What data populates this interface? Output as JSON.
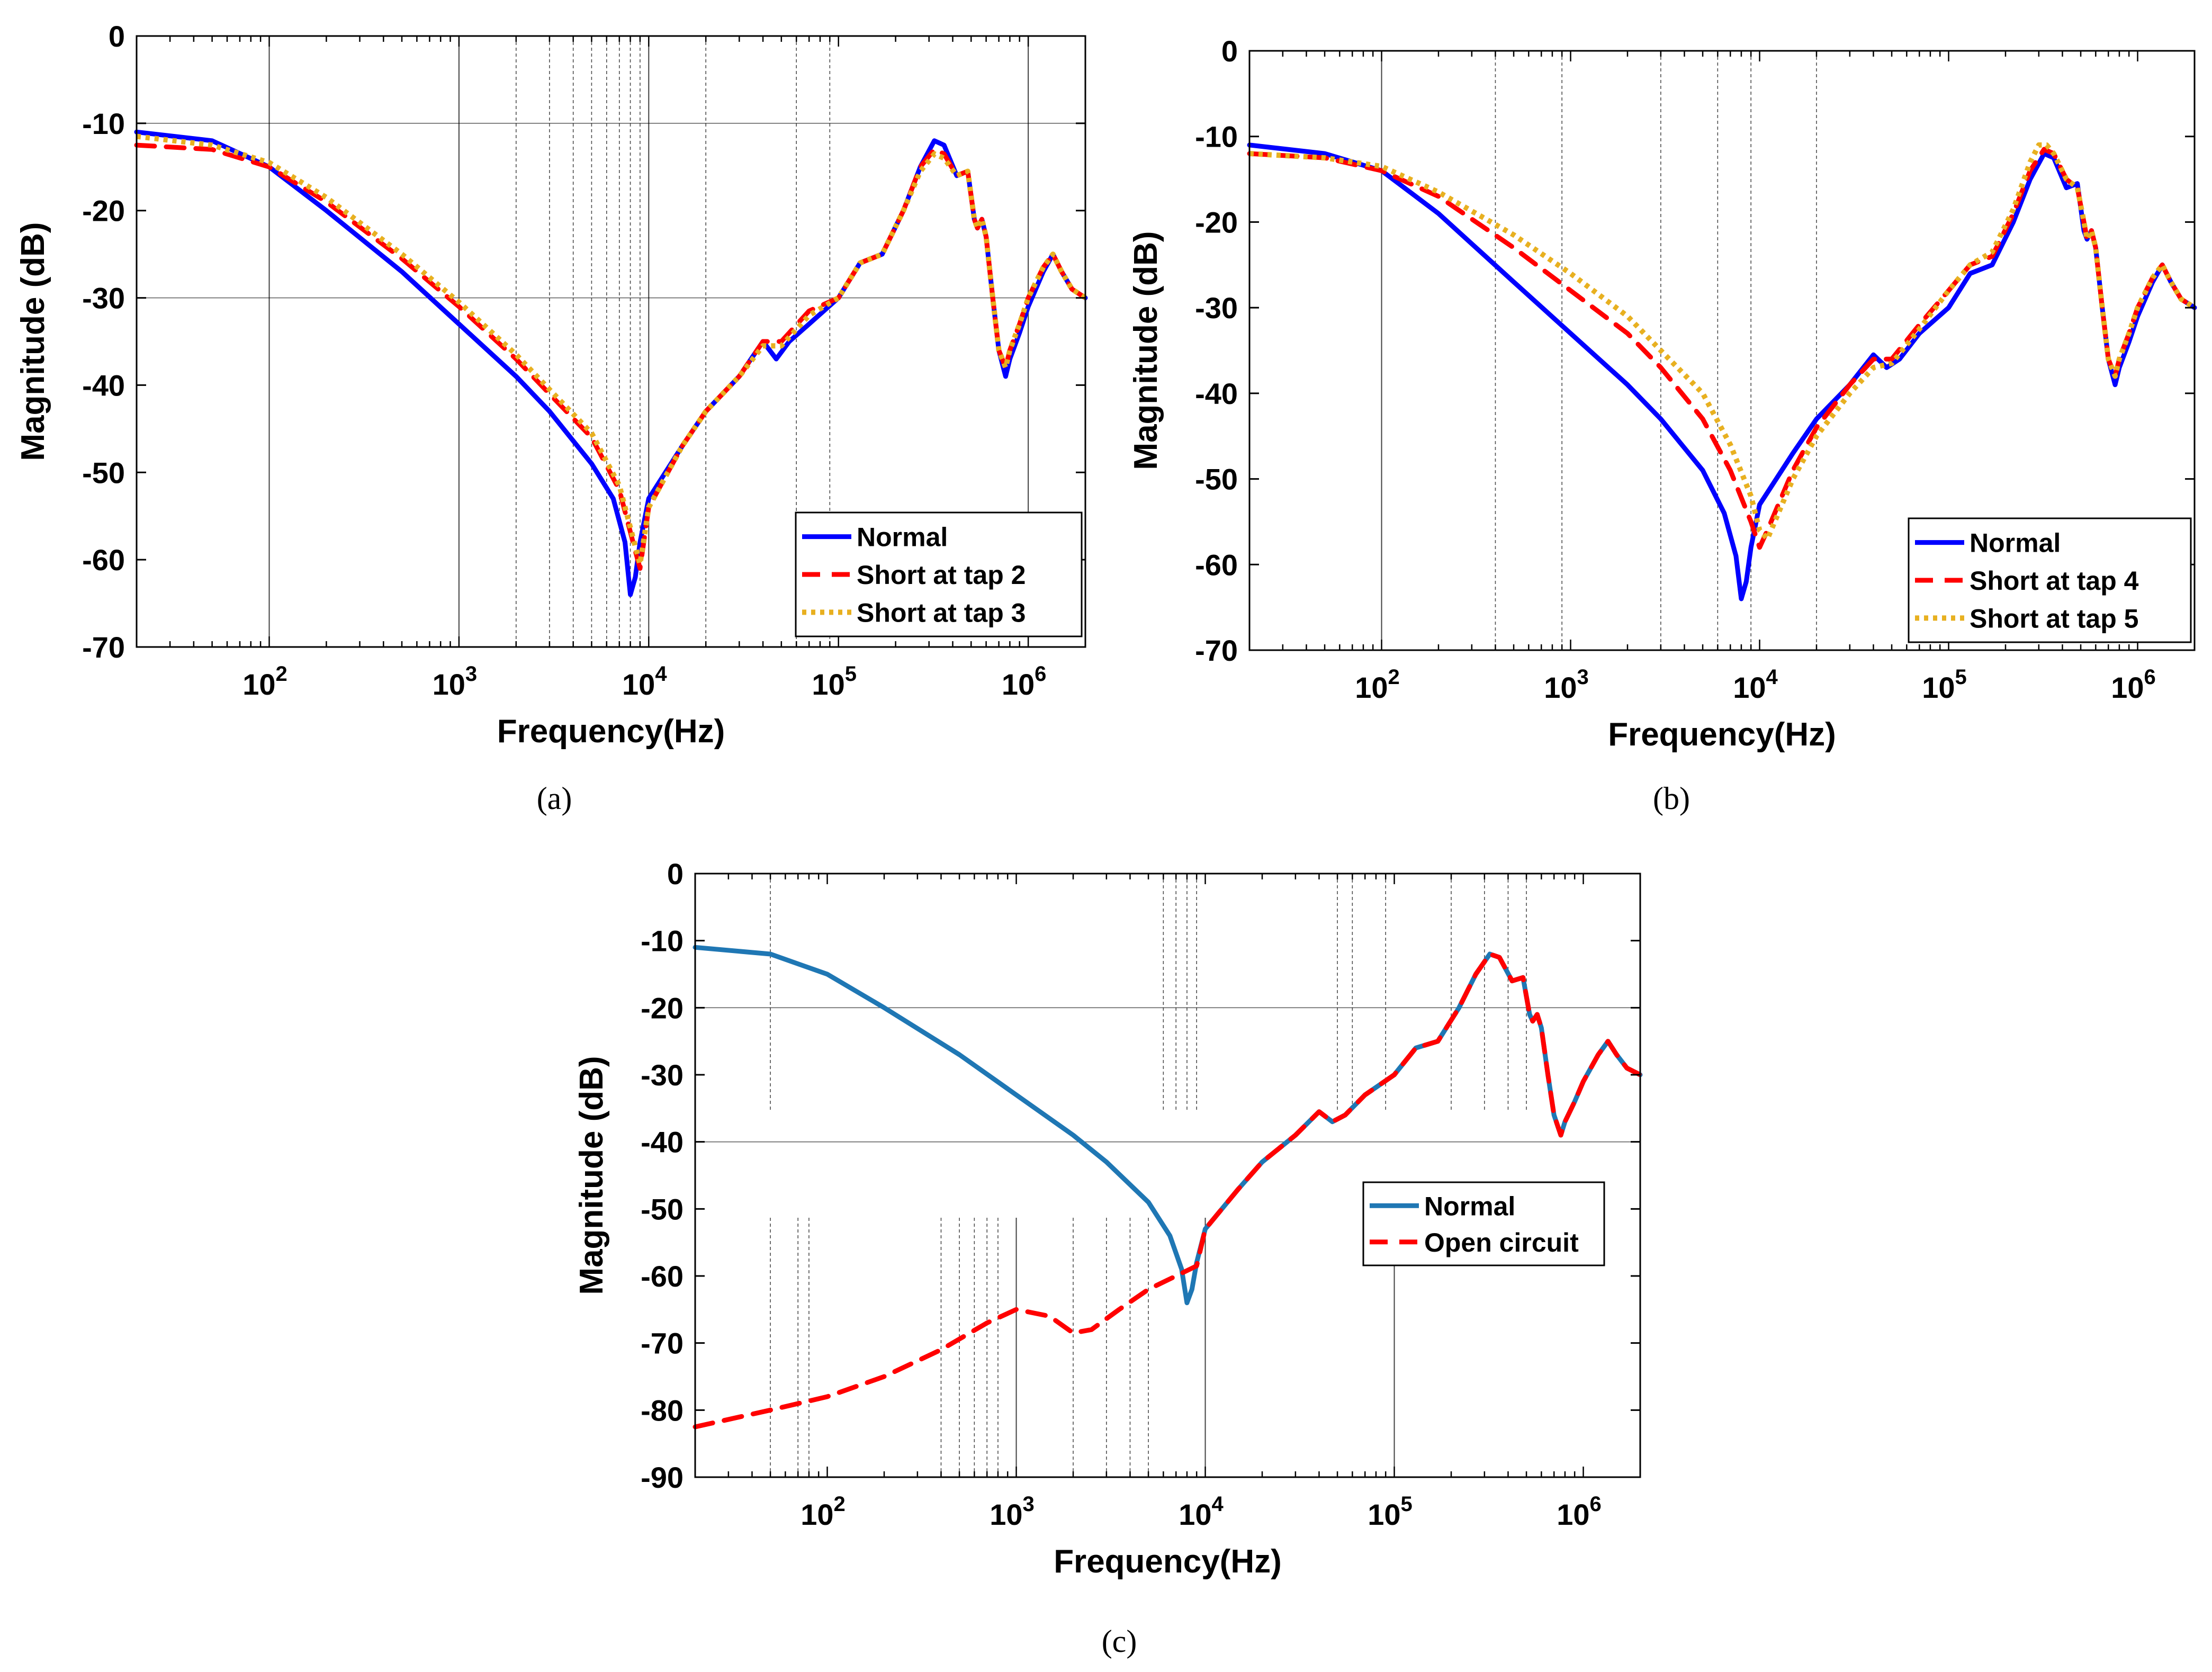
{
  "figure": {
    "colors": {
      "blue": "#0000ff",
      "red": "#ff0000",
      "orange": "#e8b020",
      "steel": "#1f77b4",
      "grid": "#000000"
    }
  },
  "chart_data": [
    {
      "id": "a",
      "caption": "(a)",
      "type": "line",
      "xscale": "log",
      "xlim": [
        20,
        2000000
      ],
      "ylim": [
        -70,
        0
      ],
      "yticks": [
        0,
        -10,
        -20,
        -30,
        -40,
        -50,
        -60,
        -70
      ],
      "xticks": [
        {
          "base": "10",
          "exp": "2",
          "value": 100
        },
        {
          "base": "10",
          "exp": "3",
          "value": 1000
        },
        {
          "base": "10",
          "exp": "4",
          "value": 10000
        },
        {
          "base": "10",
          "exp": "5",
          "value": 100000
        },
        {
          "base": "10",
          "exp": "6",
          "value": 1000000
        }
      ],
      "xlabel": "Frequency(Hz)",
      "ylabel": "Magnitude (dB)",
      "legend_position": "bottom-right",
      "grid_v": [
        100,
        1000,
        2000,
        3000,
        4000,
        5000,
        6000,
        7000,
        8000,
        9000,
        10000,
        20000,
        60000,
        90000,
        1000000
      ],
      "grid_h": [
        -10,
        -30
      ],
      "series": [
        {
          "name": "Normal",
          "color": "blue",
          "style": "solid",
          "x": [
            20,
            50,
            100,
            200,
            500,
            1000,
            2000,
            3000,
            5000,
            6500,
            7500,
            8000,
            8500,
            9000,
            10000,
            15000,
            20000,
            30000,
            40000,
            47000,
            55000,
            70000,
            100000,
            130000,
            170000,
            220000,
            270000,
            320000,
            360000,
            420000,
            480000,
            520000,
            540000,
            570000,
            600000,
            650000,
            700000,
            760000,
            800000,
            900000,
            1000000,
            1200000,
            1350000,
            1500000,
            1700000,
            2000000
          ],
          "y": [
            -11,
            -12,
            -15,
            -20,
            -27,
            -33,
            -39,
            -43,
            -49,
            -53,
            -58,
            -64,
            -62,
            -58,
            -53,
            -47,
            -43,
            -39,
            -35,
            -37,
            -35,
            -33,
            -30,
            -26,
            -25,
            -20,
            -15,
            -12,
            -12.5,
            -16,
            -15.5,
            -21,
            -22,
            -21,
            -23,
            -30,
            -36,
            -39,
            -37,
            -34,
            -31,
            -27,
            -25,
            -27,
            -29,
            -30
          ]
        },
        {
          "name": "Short at tap 2",
          "color": "red",
          "style": "dashed",
          "x": [
            20,
            50,
            100,
            200,
            500,
            1000,
            2000,
            3000,
            5000,
            7000,
            8500,
            9000,
            10000,
            15000,
            20000,
            30000,
            40000,
            50000,
            70000,
            100000,
            130000,
            170000,
            220000,
            270000,
            320000,
            360000,
            420000,
            480000,
            520000,
            540000,
            570000,
            600000,
            650000,
            700000,
            760000,
            800000,
            900000,
            1000000,
            1200000,
            1350000,
            1500000,
            1700000,
            2000000
          ],
          "y": [
            -12.5,
            -13,
            -15,
            -19,
            -25.5,
            -31,
            -37,
            -41,
            -46,
            -52,
            -59,
            -61,
            -54,
            -47,
            -43,
            -39,
            -35,
            -35,
            -31.5,
            -30,
            -26,
            -25,
            -20,
            -15,
            -13,
            -13.5,
            -16,
            -15.5,
            -21,
            -22,
            -21,
            -23,
            -30,
            -36,
            -38,
            -36,
            -33,
            -30,
            -26.5,
            -25,
            -27,
            -29,
            -30
          ]
        },
        {
          "name": "Short at tap 3",
          "color": "orange",
          "style": "dotted",
          "x": [
            20,
            50,
            100,
            200,
            500,
            1000,
            2000,
            3000,
            5000,
            7000,
            8500,
            9000,
            10000,
            15000,
            20000,
            30000,
            40000,
            50000,
            70000,
            100000,
            130000,
            170000,
            220000,
            270000,
            320000,
            360000,
            420000,
            480000,
            520000,
            540000,
            570000,
            600000,
            650000,
            700000,
            760000,
            800000,
            900000,
            1000000,
            1200000,
            1350000,
            1500000,
            1700000,
            2000000
          ],
          "y": [
            -11.5,
            -12.5,
            -14.5,
            -18.5,
            -25,
            -30.5,
            -36.5,
            -40.5,
            -45.5,
            -51.5,
            -58.5,
            -60.5,
            -54,
            -47,
            -43,
            -39,
            -35.5,
            -35.5,
            -32,
            -30,
            -26,
            -25,
            -20,
            -15.5,
            -13.5,
            -14,
            -16,
            -15.5,
            -21,
            -22,
            -21,
            -23,
            -30,
            -36,
            -38,
            -36,
            -33,
            -30,
            -26.5,
            -25,
            -27,
            -29,
            -30
          ]
        }
      ]
    },
    {
      "id": "b",
      "caption": "(b)",
      "type": "line",
      "xscale": "log",
      "xlim": [
        20,
        2000000
      ],
      "ylim": [
        -70,
        0
      ],
      "yticks": [
        0,
        -10,
        -20,
        -30,
        -40,
        -50,
        -60,
        -70
      ],
      "xticks": [
        {
          "base": "10",
          "exp": "2",
          "value": 100
        },
        {
          "base": "10",
          "exp": "3",
          "value": 1000
        },
        {
          "base": "10",
          "exp": "4",
          "value": 10000
        },
        {
          "base": "10",
          "exp": "5",
          "value": 100000
        },
        {
          "base": "10",
          "exp": "6",
          "value": 1000000
        }
      ],
      "xlabel": "Frequency(Hz)",
      "ylabel": "Magnitude (dB)",
      "legend_position": "bottom-right",
      "grid_v": [
        100,
        400,
        900,
        3000,
        6000,
        9000,
        20000
      ],
      "grid_h": [],
      "series": [
        {
          "name": "Normal",
          "color": "blue",
          "style": "solid",
          "x": [
            20,
            50,
            100,
            200,
            500,
            1000,
            2000,
            3000,
            5000,
            6500,
            7500,
            8000,
            8500,
            9000,
            10000,
            15000,
            20000,
            30000,
            40000,
            47000,
            55000,
            70000,
            100000,
            130000,
            170000,
            220000,
            270000,
            320000,
            360000,
            420000,
            480000,
            520000,
            540000,
            570000,
            600000,
            650000,
            700000,
            760000,
            800000,
            900000,
            1000000,
            1200000,
            1350000,
            1500000,
            1700000,
            2000000
          ],
          "y": [
            -11,
            -12,
            -14,
            -19,
            -27,
            -33,
            -39,
            -43,
            -49,
            -54,
            -59,
            -64,
            -62,
            -58,
            -53,
            -47,
            -43,
            -39,
            -35.5,
            -37,
            -36,
            -33,
            -30,
            -26,
            -25,
            -20,
            -15,
            -12,
            -12.5,
            -16,
            -15.5,
            -21,
            -22,
            -21,
            -23,
            -30,
            -36,
            -39,
            -37,
            -34,
            -31,
            -27,
            -25,
            -27,
            -29,
            -30
          ]
        },
        {
          "name": "Short at tap 4",
          "color": "red",
          "style": "dashed",
          "x": [
            20,
            50,
            100,
            200,
            500,
            1000,
            2000,
            3000,
            5000,
            7000,
            9000,
            10000,
            11000,
            15000,
            20000,
            30000,
            40000,
            50000,
            70000,
            100000,
            130000,
            170000,
            220000,
            270000,
            320000,
            360000,
            420000,
            480000,
            520000,
            540000,
            570000,
            600000,
            650000,
            700000,
            760000,
            800000,
            900000,
            1000000,
            1200000,
            1350000,
            1500000,
            1700000,
            2000000
          ],
          "y": [
            -12,
            -12.5,
            -14,
            -17,
            -23,
            -28,
            -33,
            -37,
            -43,
            -49,
            -55,
            -58,
            -56,
            -49,
            -44,
            -39,
            -36,
            -36,
            -32,
            -28,
            -25,
            -24,
            -19,
            -14,
            -11.5,
            -12,
            -15,
            -16,
            -20,
            -22,
            -21,
            -23,
            -30,
            -36,
            -38,
            -36,
            -33,
            -30,
            -26.5,
            -25,
            -27,
            -29,
            -30
          ]
        },
        {
          "name": "Short at tap 5",
          "color": "orange",
          "style": "dotted",
          "x": [
            20,
            50,
            100,
            200,
            500,
            1000,
            2000,
            3000,
            5000,
            7000,
            9000,
            10000,
            11000,
            15000,
            20000,
            30000,
            40000,
            50000,
            70000,
            100000,
            130000,
            170000,
            220000,
            270000,
            300000,
            330000,
            360000,
            420000,
            480000,
            520000,
            540000,
            570000,
            600000,
            650000,
            700000,
            760000,
            800000,
            900000,
            1000000,
            1200000,
            1350000,
            1500000,
            1700000,
            2000000
          ],
          "y": [
            -12,
            -12.5,
            -13.5,
            -16.5,
            -21.5,
            -26,
            -31,
            -35,
            -40,
            -46,
            -52,
            -56,
            -57,
            -50,
            -45,
            -40,
            -37,
            -36.5,
            -32.5,
            -28,
            -25,
            -23.5,
            -18.5,
            -13,
            -11,
            -11,
            -12,
            -15,
            -16,
            -20,
            -22,
            -21,
            -23,
            -30,
            -36,
            -38,
            -36,
            -33,
            -30,
            -26.5,
            -25,
            -27,
            -29,
            -30
          ]
        }
      ]
    },
    {
      "id": "c",
      "caption": "(c)",
      "type": "line",
      "xscale": "log",
      "xlim": [
        20,
        2000000
      ],
      "ylim": [
        -90,
        0
      ],
      "yticks": [
        0,
        -10,
        -20,
        -30,
        -40,
        -50,
        -60,
        -70,
        -80,
        -90
      ],
      "xticks": [
        {
          "base": "10",
          "exp": "2",
          "value": 100
        },
        {
          "base": "10",
          "exp": "3",
          "value": 1000
        },
        {
          "base": "10",
          "exp": "4",
          "value": 10000
        },
        {
          "base": "10",
          "exp": "5",
          "value": 100000
        },
        {
          "base": "10",
          "exp": "6",
          "value": 1000000
        }
      ],
      "xlabel": "Frequency(Hz)",
      "ylabel": "Magnitude (dB)",
      "legend_position": "right",
      "grid_v_upper": [
        50,
        6000,
        7000,
        8000,
        9000,
        50000,
        60000,
        90000,
        200000,
        300000,
        400000,
        500000
      ],
      "grid_v_lower": [
        50,
        70,
        80,
        400,
        500,
        600,
        700,
        800,
        1000,
        2000,
        3000,
        4000,
        5000,
        10000,
        100000
      ],
      "grid_h": [
        -20,
        -40
      ],
      "series": [
        {
          "name": "Normal",
          "color": "steel",
          "style": "solid",
          "x": [
            20,
            50,
            100,
            200,
            500,
            1000,
            2000,
            3000,
            5000,
            6500,
            7500,
            8000,
            8500,
            9000,
            10000,
            15000,
            20000,
            30000,
            40000,
            47000,
            55000,
            70000,
            100000,
            130000,
            170000,
            220000,
            270000,
            320000,
            360000,
            420000,
            480000,
            520000,
            540000,
            570000,
            600000,
            650000,
            700000,
            760000,
            800000,
            900000,
            1000000,
            1200000,
            1350000,
            1500000,
            1700000,
            2000000
          ],
          "y": [
            -11,
            -12,
            -15,
            -20,
            -27,
            -33,
            -39,
            -43,
            -49,
            -54,
            -59,
            -64,
            -62,
            -58,
            -53,
            -47,
            -43,
            -39,
            -35.5,
            -37,
            -36,
            -33,
            -30,
            -26,
            -25,
            -20,
            -15,
            -12,
            -12.5,
            -16,
            -15.5,
            -21,
            -22,
            -21,
            -23,
            -30,
            -36,
            -39,
            -37,
            -34,
            -31,
            -27,
            -25,
            -27,
            -29,
            -30
          ]
        },
        {
          "name": "Open circuit",
          "color": "red",
          "style": "dashed",
          "x": [
            20,
            50,
            100,
            200,
            400,
            700,
            1000,
            1500,
            2000,
            2500,
            3500,
            5000,
            7000,
            9000,
            10000,
            15000,
            20000,
            30000,
            40000,
            47000,
            55000,
            70000,
            100000,
            130000,
            170000,
            220000,
            270000,
            320000,
            360000,
            420000,
            480000,
            520000,
            540000,
            570000,
            600000,
            650000,
            700000,
            760000,
            800000,
            900000,
            1000000,
            1200000,
            1350000,
            1500000,
            1700000,
            2000000
          ],
          "y": [
            -82.5,
            -80,
            -78,
            -75,
            -71,
            -67,
            -65,
            -66,
            -68.5,
            -68,
            -65,
            -62,
            -60,
            -58.5,
            -53,
            -47,
            -43,
            -39,
            -35.5,
            -37,
            -36,
            -33,
            -30,
            -26,
            -25,
            -20,
            -15,
            -12,
            -12.5,
            -16,
            -15.5,
            -21,
            -22,
            -21,
            -23,
            -30,
            -36,
            -39,
            -37,
            -34,
            -31,
            -27,
            -25,
            -27,
            -29,
            -30
          ]
        }
      ]
    }
  ]
}
